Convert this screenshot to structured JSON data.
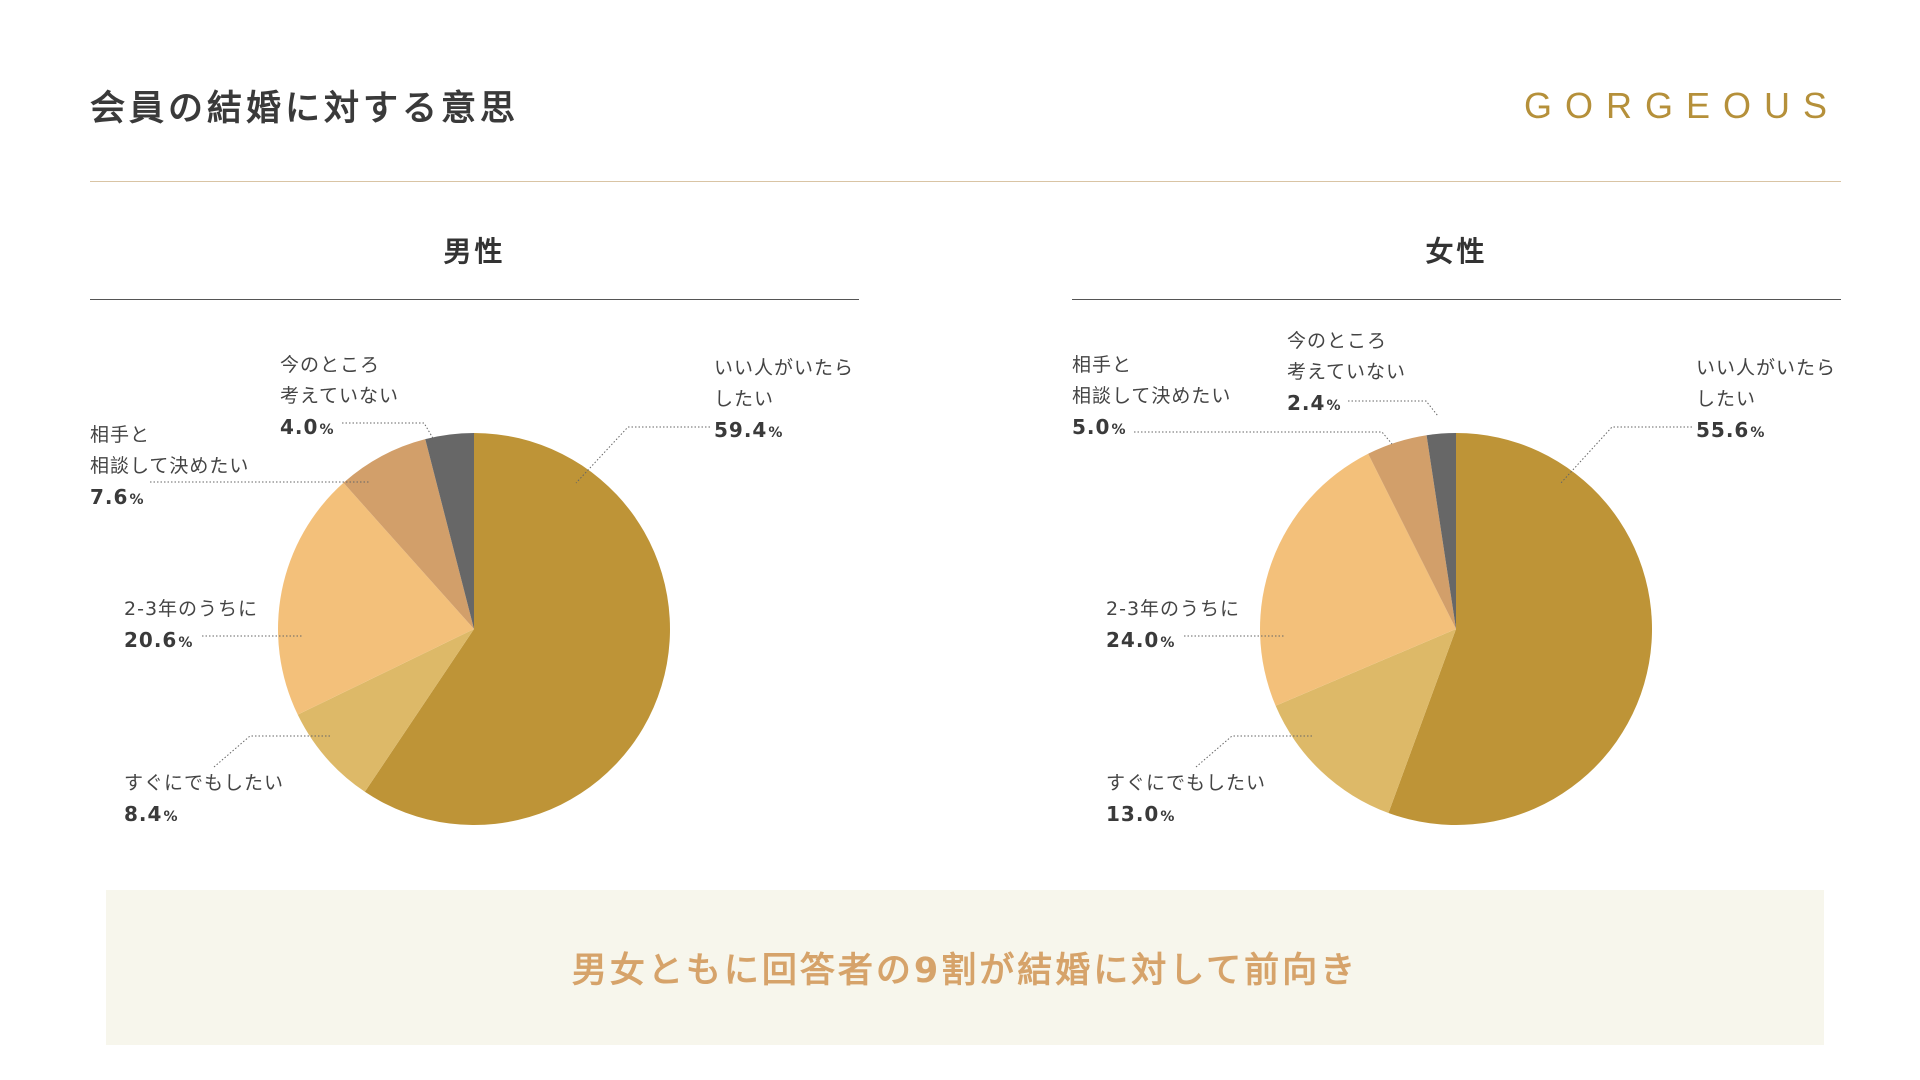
{
  "header": {
    "title": "会員の結婚に対する意思",
    "brand": "GORGEOUS"
  },
  "colors": {
    "brand_gold": "#b5903a",
    "slice_colors": [
      "#be9437",
      "#ddb968",
      "#f3c07a",
      "#d29f6a",
      "#676767"
    ],
    "conclusion_bg": "#f7f6ec",
    "conclusion_text": "#d6a36a"
  },
  "chart_data": [
    {
      "type": "pie",
      "title": "男性",
      "slices": [
        {
          "label_lines": [
            "いい人がいたら",
            "したい"
          ],
          "value": 59.4
        },
        {
          "label_lines": [
            "すぐにでもしたい"
          ],
          "value": 8.4
        },
        {
          "label_lines": [
            "2-3年のうちに"
          ],
          "value": 20.6
        },
        {
          "label_lines": [
            "相手と",
            "相談して決めたい"
          ],
          "value": 7.6
        },
        {
          "label_lines": [
            "今のところ",
            "考えていない"
          ],
          "value": 4.0
        }
      ],
      "value_unit": "%"
    },
    {
      "type": "pie",
      "title": "女性",
      "slices": [
        {
          "label_lines": [
            "いい人がいたら",
            "したい"
          ],
          "value": 55.6
        },
        {
          "label_lines": [
            "すぐにでもしたい"
          ],
          "value": 13.0
        },
        {
          "label_lines": [
            "2-3年のうちに"
          ],
          "value": 24.0
        },
        {
          "label_lines": [
            "相手と",
            "相談して決めたい"
          ],
          "value": 5.0
        },
        {
          "label_lines": [
            "今のところ",
            "考えていない"
          ],
          "value": 2.4
        }
      ],
      "value_unit": "%"
    }
  ],
  "conclusion": {
    "text": "男女ともに回答者の9割が結婚に対して前向き"
  }
}
